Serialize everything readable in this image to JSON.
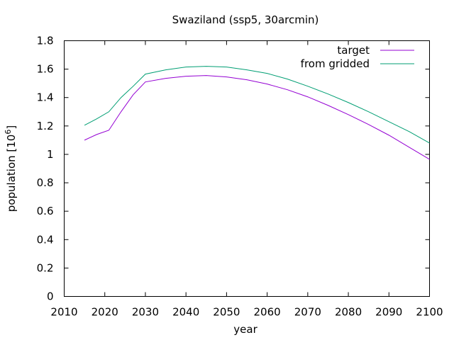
{
  "chart_data": {
    "type": "line",
    "title": "Swaziland (ssp5, 30arcmin)",
    "xlabel": "year",
    "ylabel_base": "population [10",
    "ylabel_exp": "6",
    "ylabel_close": "]",
    "xlim": [
      2010,
      2100
    ],
    "ylim": [
      0,
      1.8
    ],
    "xticks": [
      "2010",
      "2020",
      "2030",
      "2040",
      "2050",
      "2060",
      "2070",
      "2080",
      "2090",
      "2100"
    ],
    "yticks": [
      "0",
      "0.2",
      "0.4",
      "0.6",
      "0.8",
      "1",
      "1.2",
      "1.4",
      "1.6",
      "1.8"
    ],
    "grid": false,
    "legend_position": "top-right",
    "series": [
      {
        "name": "target",
        "color": "#9400d3",
        "x": [
          2015,
          2018,
          2021,
          2024,
          2027,
          2030,
          2035,
          2040,
          2045,
          2050,
          2055,
          2060,
          2065,
          2070,
          2075,
          2080,
          2085,
          2090,
          2095,
          2100
        ],
        "y": [
          1.1,
          1.14,
          1.17,
          1.3,
          1.42,
          1.51,
          1.535,
          1.55,
          1.555,
          1.545,
          1.525,
          1.495,
          1.455,
          1.405,
          1.345,
          1.28,
          1.21,
          1.135,
          1.05,
          0.965
        ]
      },
      {
        "name": "from gridded",
        "color": "#009e73",
        "x": [
          2015,
          2018,
          2021,
          2024,
          2027,
          2030,
          2035,
          2040,
          2045,
          2050,
          2055,
          2060,
          2065,
          2070,
          2075,
          2080,
          2085,
          2090,
          2095,
          2100
        ],
        "y": [
          1.205,
          1.25,
          1.3,
          1.4,
          1.48,
          1.565,
          1.595,
          1.615,
          1.62,
          1.615,
          1.595,
          1.57,
          1.53,
          1.48,
          1.425,
          1.365,
          1.3,
          1.23,
          1.16,
          1.08
        ]
      }
    ]
  }
}
